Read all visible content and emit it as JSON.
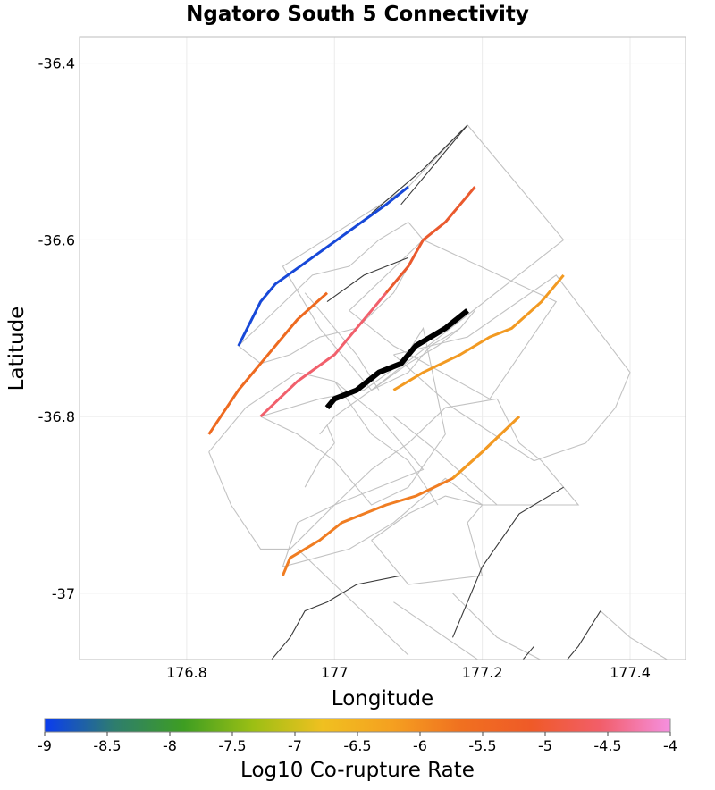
{
  "chart_data": {
    "type": "map",
    "title": "Ngatoro South 5 Connectivity",
    "xlabel": "Longitude",
    "ylabel": "Latitude",
    "xlim": [
      176.655,
      177.475
    ],
    "ylim": [
      -37.075,
      -36.37
    ],
    "xticks": [
      {
        "value": 176.8,
        "label": "176.8"
      },
      {
        "value": 177.0,
        "label": "177"
      },
      {
        "value": 177.2,
        "label": "177.2"
      },
      {
        "value": 177.4,
        "label": "177.4"
      }
    ],
    "yticks": [
      {
        "value": -36.4,
        "label": "-36.4"
      },
      {
        "value": -36.6,
        "label": "-36.6"
      },
      {
        "value": -36.8,
        "label": "-36.8"
      },
      {
        "value": -37.0,
        "label": "-37"
      }
    ],
    "grid": true,
    "colorbar": {
      "label": "Log10 Co-rupture Rate",
      "min": -9,
      "max": -4,
      "colors": [
        "#0a3cf0",
        "#2e7d6e",
        "#3e9e22",
        "#9cbf14",
        "#f0c020",
        "#f5a020",
        "#f07020",
        "#ef5a28",
        "#f25e6a",
        "#f590e0"
      ],
      "ticks": [
        {
          "value": -9,
          "label": "-9"
        },
        {
          "value": -8.5,
          "label": "-8.5"
        },
        {
          "value": -8,
          "label": "-8"
        },
        {
          "value": -7.5,
          "label": "-7.5"
        },
        {
          "value": -7,
          "label": "-7"
        },
        {
          "value": -6.5,
          "label": "-6.5"
        },
        {
          "value": -6,
          "label": "-6"
        },
        {
          "value": -5.5,
          "label": "-5.5"
        },
        {
          "value": -5,
          "label": "-5"
        },
        {
          "value": -4.5,
          "label": "-4.5"
        },
        {
          "value": -4,
          "label": "-4"
        }
      ]
    },
    "outlines": [
      [
        [
          177.18,
          -36.47
        ],
        [
          177.31,
          -36.6
        ],
        [
          177.05,
          -36.77
        ],
        [
          176.98,
          -36.7
        ],
        [
          176.93,
          -36.63
        ],
        [
          177.1,
          -36.54
        ],
        [
          177.18,
          -36.47
        ]
      ],
      [
        [
          177.12,
          -36.6
        ],
        [
          177.3,
          -36.67
        ],
        [
          177.21,
          -36.78
        ],
        [
          177.08,
          -36.72
        ],
        [
          177.02,
          -36.68
        ],
        [
          177.12,
          -36.6
        ]
      ],
      [
        [
          177.1,
          -36.58
        ],
        [
          177.12,
          -36.6
        ],
        [
          177.08,
          -36.66
        ],
        [
          177.03,
          -36.7
        ],
        [
          176.98,
          -36.71
        ],
        [
          176.94,
          -36.73
        ],
        [
          176.9,
          -36.74
        ],
        [
          176.87,
          -36.72
        ],
        [
          176.92,
          -36.68
        ],
        [
          176.97,
          -36.64
        ],
        [
          177.02,
          -36.63
        ],
        [
          177.06,
          -36.6
        ],
        [
          177.1,
          -36.58
        ]
      ],
      [
        [
          177.08,
          -36.73
        ],
        [
          177.16,
          -36.79
        ],
        [
          177.27,
          -36.85
        ],
        [
          177.34,
          -36.83
        ],
        [
          177.38,
          -36.79
        ],
        [
          177.4,
          -36.75
        ],
        [
          177.3,
          -36.64
        ],
        [
          177.18,
          -36.71
        ],
        [
          177.08,
          -36.73
        ]
      ],
      [
        [
          177.22,
          -36.78
        ],
        [
          177.25,
          -36.83
        ],
        [
          177.28,
          -36.85
        ],
        [
          177.33,
          -36.9
        ],
        [
          177.2,
          -36.9
        ],
        [
          177.15,
          -36.87
        ],
        [
          177.08,
          -36.92
        ],
        [
          177.02,
          -36.95
        ],
        [
          176.93,
          -36.97
        ],
        [
          176.95,
          -36.92
        ],
        [
          177.0,
          -36.9
        ],
        [
          177.05,
          -36.86
        ],
        [
          177.1,
          -36.83
        ],
        [
          177.15,
          -36.79
        ],
        [
          177.22,
          -36.78
        ]
      ],
      [
        [
          176.9,
          -36.8
        ],
        [
          176.98,
          -36.78
        ],
        [
          177.04,
          -36.77
        ],
        [
          177.09,
          -36.74
        ],
        [
          177.12,
          -36.7
        ],
        [
          177.15,
          -36.82
        ],
        [
          177.1,
          -36.88
        ],
        [
          177.05,
          -36.9
        ],
        [
          177.0,
          -36.85
        ],
        [
          176.95,
          -36.82
        ],
        [
          176.9,
          -36.8
        ]
      ],
      [
        [
          176.83,
          -36.84
        ],
        [
          176.88,
          -36.79
        ],
        [
          176.95,
          -36.75
        ],
        [
          177.0,
          -36.76
        ],
        [
          177.06,
          -36.8
        ],
        [
          177.12,
          -36.86
        ],
        [
          177.06,
          -36.88
        ],
        [
          177.0,
          -36.9
        ],
        [
          176.94,
          -36.95
        ],
        [
          176.9,
          -36.95
        ],
        [
          176.86,
          -36.9
        ],
        [
          176.83,
          -36.84
        ]
      ],
      [
        [
          177.05,
          -36.94
        ],
        [
          177.1,
          -36.91
        ],
        [
          177.15,
          -36.89
        ],
        [
          177.2,
          -36.9
        ],
        [
          177.18,
          -36.92
        ],
        [
          177.2,
          -36.98
        ],
        [
          177.1,
          -36.99
        ],
        [
          177.05,
          -36.94
        ]
      ],
      [
        [
          176.99,
          -36.81
        ],
        [
          177.0,
          -36.83
        ],
        [
          176.98,
          -36.85
        ],
        [
          176.96,
          -36.88
        ]
      ],
      [
        [
          177.0,
          -36.76
        ],
        [
          177.05,
          -36.82
        ],
        [
          177.1,
          -36.85
        ],
        [
          177.14,
          -36.9
        ]
      ],
      [
        [
          177.05,
          -36.77
        ],
        [
          177.1,
          -36.74
        ],
        [
          177.14,
          -36.72
        ],
        [
          177.17,
          -36.7
        ],
        [
          177.19,
          -36.68
        ]
      ],
      [
        [
          177.17,
          -36.7
        ],
        [
          177.13,
          -36.72
        ],
        [
          177.1,
          -36.75
        ],
        [
          177.05,
          -36.77
        ],
        [
          177.0,
          -36.8
        ],
        [
          176.98,
          -36.82
        ]
      ],
      [
        [
          176.96,
          -36.66
        ],
        [
          177.0,
          -36.7
        ],
        [
          177.03,
          -36.73
        ],
        [
          177.06,
          -36.77
        ]
      ],
      [
        [
          177.08,
          -36.8
        ],
        [
          177.14,
          -36.84
        ],
        [
          177.18,
          -36.87
        ],
        [
          177.22,
          -36.9
        ]
      ],
      [
        [
          176.95,
          -36.95
        ],
        [
          177.0,
          -36.99
        ],
        [
          177.05,
          -37.03
        ],
        [
          177.1,
          -37.07
        ]
      ],
      [
        [
          177.08,
          -37.01
        ],
        [
          177.15,
          -37.05
        ],
        [
          177.22,
          -37.09
        ]
      ],
      [
        [
          177.16,
          -37.0
        ],
        [
          177.22,
          -37.05
        ],
        [
          177.29,
          -37.08
        ]
      ],
      [
        [
          177.36,
          -37.02
        ],
        [
          177.4,
          -37.05
        ],
        [
          177.46,
          -37.08
        ]
      ]
    ],
    "dark_traces": [
      [
        [
          177.18,
          -36.47
        ],
        [
          177.12,
          -36.52
        ],
        [
          177.05,
          -36.57
        ]
      ],
      [
        [
          177.18,
          -36.47
        ],
        [
          177.14,
          -36.51
        ],
        [
          177.09,
          -36.56
        ]
      ],
      [
        [
          177.1,
          -36.62
        ],
        [
          177.04,
          -36.64
        ],
        [
          176.99,
          -36.67
        ]
      ],
      [
        [
          177.31,
          -36.88
        ],
        [
          177.25,
          -36.91
        ],
        [
          177.2,
          -36.97
        ],
        [
          177.16,
          -37.05
        ]
      ],
      [
        [
          177.09,
          -36.98
        ],
        [
          177.03,
          -36.99
        ],
        [
          176.99,
          -37.01
        ],
        [
          176.96,
          -37.02
        ],
        [
          176.94,
          -37.05
        ],
        [
          176.91,
          -37.08
        ]
      ],
      [
        [
          177.36,
          -37.02
        ],
        [
          177.33,
          -37.06
        ],
        [
          177.3,
          -37.09
        ]
      ],
      [
        [
          177.27,
          -37.06
        ],
        [
          177.25,
          -37.08
        ]
      ]
    ],
    "colored_traces": [
      {
        "name": "trace-blue",
        "color": "#1748d8",
        "width": 3,
        "points": [
          [
            176.87,
            -36.72
          ],
          [
            176.9,
            -36.67
          ],
          [
            176.92,
            -36.65
          ],
          [
            176.97,
            -36.62
          ],
          [
            177.02,
            -36.59
          ],
          [
            177.07,
            -36.56
          ],
          [
            177.1,
            -36.54
          ]
        ]
      },
      {
        "name": "trace-orange-west",
        "color": "#ee6a20",
        "width": 3,
        "points": [
          [
            176.83,
            -36.82
          ],
          [
            176.87,
            -36.77
          ],
          [
            176.91,
            -36.73
          ],
          [
            176.95,
            -36.69
          ],
          [
            176.99,
            -36.66
          ]
        ]
      },
      {
        "name": "trace-pink",
        "color": "#f1606c",
        "width": 3,
        "points": [
          [
            176.9,
            -36.8
          ],
          [
            176.95,
            -36.76
          ],
          [
            177.0,
            -36.73
          ],
          [
            177.04,
            -36.69
          ],
          [
            177.07,
            -36.66
          ]
        ]
      },
      {
        "name": "trace-red",
        "color": "#ea5a2e",
        "width": 3,
        "points": [
          [
            177.07,
            -36.66
          ],
          [
            177.1,
            -36.63
          ],
          [
            177.12,
            -36.6
          ],
          [
            177.15,
            -36.58
          ],
          [
            177.19,
            -36.54
          ]
        ]
      },
      {
        "name": "trace-orange-mid",
        "color": "#f29a22",
        "width": 3,
        "points": [
          [
            177.08,
            -36.77
          ],
          [
            177.12,
            -36.75
          ],
          [
            177.17,
            -36.73
          ],
          [
            177.21,
            -36.71
          ],
          [
            177.24,
            -36.7
          ],
          [
            177.28,
            -36.67
          ],
          [
            177.31,
            -36.64
          ]
        ]
      },
      {
        "name": "trace-orange-south",
        "color": "#f07d22",
        "width": 3,
        "points": [
          [
            176.93,
            -36.98
          ],
          [
            176.94,
            -36.96
          ],
          [
            176.98,
            -36.94
          ],
          [
            177.01,
            -36.92
          ],
          [
            177.04,
            -36.91
          ],
          [
            177.07,
            -36.9
          ],
          [
            177.11,
            -36.89
          ],
          [
            177.16,
            -36.87
          ],
          [
            177.2,
            -36.84
          ],
          [
            177.25,
            -36.8
          ]
        ]
      },
      {
        "name": "trace-orange-south-end",
        "color": "#f29a22",
        "width": 3,
        "points": [
          [
            177.16,
            -36.87
          ],
          [
            177.2,
            -36.84
          ],
          [
            177.25,
            -36.8
          ]
        ]
      },
      {
        "name": "trace-target-black",
        "color": "#000000",
        "width": 6,
        "points": [
          [
            176.99,
            -36.79
          ],
          [
            177.0,
            -36.78
          ],
          [
            177.03,
            -36.77
          ],
          [
            177.06,
            -36.75
          ],
          [
            177.09,
            -36.74
          ],
          [
            177.11,
            -36.72
          ],
          [
            177.15,
            -36.7
          ],
          [
            177.18,
            -36.68
          ]
        ]
      }
    ]
  }
}
